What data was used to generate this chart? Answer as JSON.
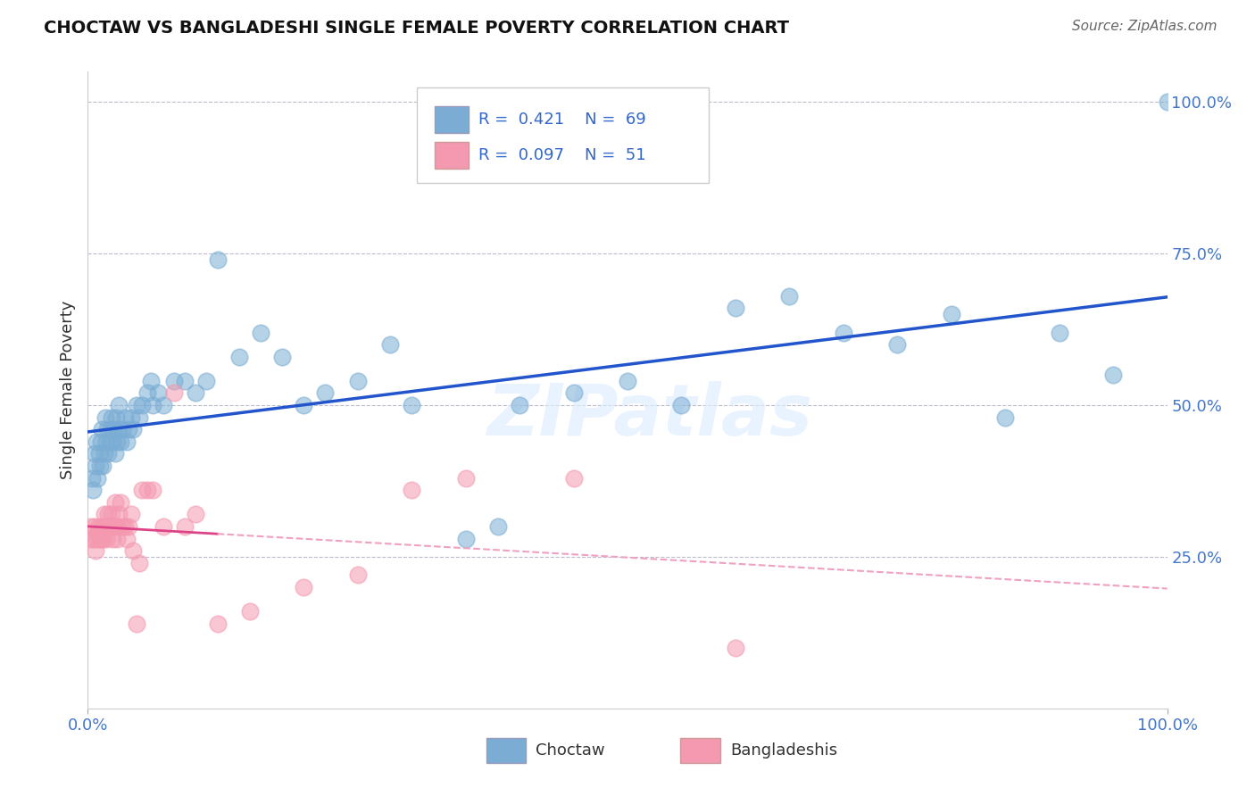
{
  "title": "CHOCTAW VS BANGLADESHI SINGLE FEMALE POVERTY CORRELATION CHART",
  "source": "Source: ZipAtlas.com",
  "ylabel": "Single Female Poverty",
  "choctaw_color": "#7BADD4",
  "bangladeshi_color": "#F499B0",
  "choctaw_line_color": "#2255CC",
  "bangladeshi_line_color": "#DD4488",
  "bangladeshi_dash_color": "#F0A0C0",
  "watermark": "ZIPatlas",
  "legend1_r": "0.421",
  "legend1_n": "69",
  "legend2_r": "0.097",
  "legend2_n": "51",
  "choctaw_x": [
    0.004,
    0.005,
    0.006,
    0.007,
    0.008,
    0.009,
    0.01,
    0.011,
    0.012,
    0.013,
    0.014,
    0.015,
    0.016,
    0.017,
    0.018,
    0.019,
    0.02,
    0.021,
    0.022,
    0.023,
    0.024,
    0.025,
    0.026,
    0.027,
    0.028,
    0.029,
    0.03,
    0.032,
    0.034,
    0.036,
    0.038,
    0.04,
    0.042,
    0.045,
    0.048,
    0.05,
    0.055,
    0.058,
    0.06,
    0.065,
    0.07,
    0.08,
    0.09,
    0.1,
    0.11,
    0.12,
    0.14,
    0.16,
    0.18,
    0.2,
    0.22,
    0.25,
    0.28,
    0.3,
    0.35,
    0.38,
    0.4,
    0.45,
    0.5,
    0.55,
    0.6,
    0.65,
    0.7,
    0.75,
    0.8,
    0.85,
    0.9,
    0.95,
    1.0
  ],
  "choctaw_y": [
    0.38,
    0.36,
    0.42,
    0.4,
    0.44,
    0.38,
    0.42,
    0.4,
    0.44,
    0.46,
    0.4,
    0.42,
    0.48,
    0.44,
    0.46,
    0.42,
    0.44,
    0.46,
    0.48,
    0.44,
    0.46,
    0.42,
    0.48,
    0.44,
    0.46,
    0.5,
    0.44,
    0.46,
    0.48,
    0.44,
    0.46,
    0.48,
    0.46,
    0.5,
    0.48,
    0.5,
    0.52,
    0.54,
    0.5,
    0.52,
    0.5,
    0.54,
    0.54,
    0.52,
    0.54,
    0.74,
    0.58,
    0.62,
    0.58,
    0.5,
    0.52,
    0.54,
    0.6,
    0.5,
    0.28,
    0.3,
    0.5,
    0.52,
    0.54,
    0.5,
    0.66,
    0.68,
    0.62,
    0.6,
    0.65,
    0.48,
    0.62,
    0.55,
    1.0
  ],
  "bangladeshi_x": [
    0.003,
    0.004,
    0.005,
    0.006,
    0.007,
    0.008,
    0.009,
    0.01,
    0.011,
    0.012,
    0.013,
    0.014,
    0.015,
    0.016,
    0.017,
    0.018,
    0.019,
    0.02,
    0.021,
    0.022,
    0.023,
    0.024,
    0.025,
    0.026,
    0.027,
    0.028,
    0.029,
    0.03,
    0.032,
    0.034,
    0.036,
    0.038,
    0.04,
    0.042,
    0.045,
    0.048,
    0.05,
    0.055,
    0.06,
    0.07,
    0.08,
    0.09,
    0.1,
    0.12,
    0.15,
    0.2,
    0.25,
    0.3,
    0.35,
    0.45,
    0.6
  ],
  "bangladeshi_y": [
    0.3,
    0.28,
    0.28,
    0.3,
    0.26,
    0.28,
    0.29,
    0.3,
    0.28,
    0.28,
    0.3,
    0.28,
    0.32,
    0.3,
    0.28,
    0.3,
    0.32,
    0.3,
    0.3,
    0.32,
    0.28,
    0.3,
    0.34,
    0.3,
    0.28,
    0.3,
    0.32,
    0.34,
    0.3,
    0.3,
    0.28,
    0.3,
    0.32,
    0.26,
    0.14,
    0.24,
    0.36,
    0.36,
    0.36,
    0.3,
    0.52,
    0.3,
    0.32,
    0.14,
    0.16,
    0.2,
    0.22,
    0.36,
    0.38,
    0.38,
    0.1
  ],
  "xmin": 0.0,
  "xmax": 1.0,
  "ymin": 0.0,
  "ymax": 1.05
}
